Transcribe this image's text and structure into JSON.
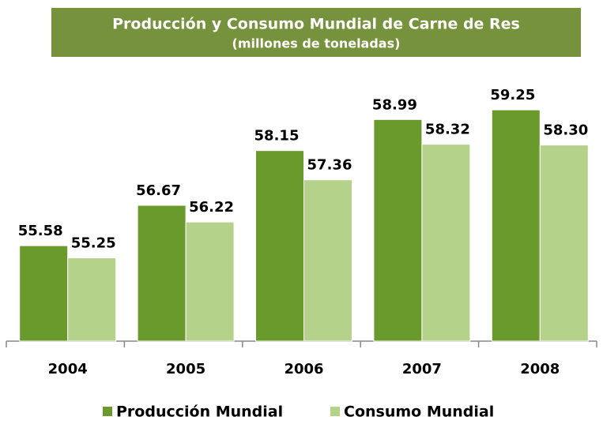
{
  "chart_data": {
    "type": "bar",
    "title": "Producción y Consumo Mundial de Carne de Res",
    "subtitle": "(millones de toneladas)",
    "categories": [
      "2004",
      "2005",
      "2006",
      "2007",
      "2008"
    ],
    "series": [
      {
        "name": "Producción Mundial",
        "color": "#6b9a2c",
        "values": [
          55.58,
          56.67,
          58.15,
          58.99,
          59.25
        ],
        "value_labels": [
          "55.58",
          "56.67",
          "58.15",
          "58.99",
          "59.25"
        ]
      },
      {
        "name": "Consumo Mundial",
        "color": "#b4d28a",
        "values": [
          55.25,
          56.22,
          57.36,
          58.32,
          58.3
        ],
        "value_labels": [
          "55.25",
          "56.22",
          "57.36",
          "58.32",
          "58.30"
        ]
      }
    ],
    "ylim": [
      53,
      60
    ],
    "legend": "bottom"
  }
}
